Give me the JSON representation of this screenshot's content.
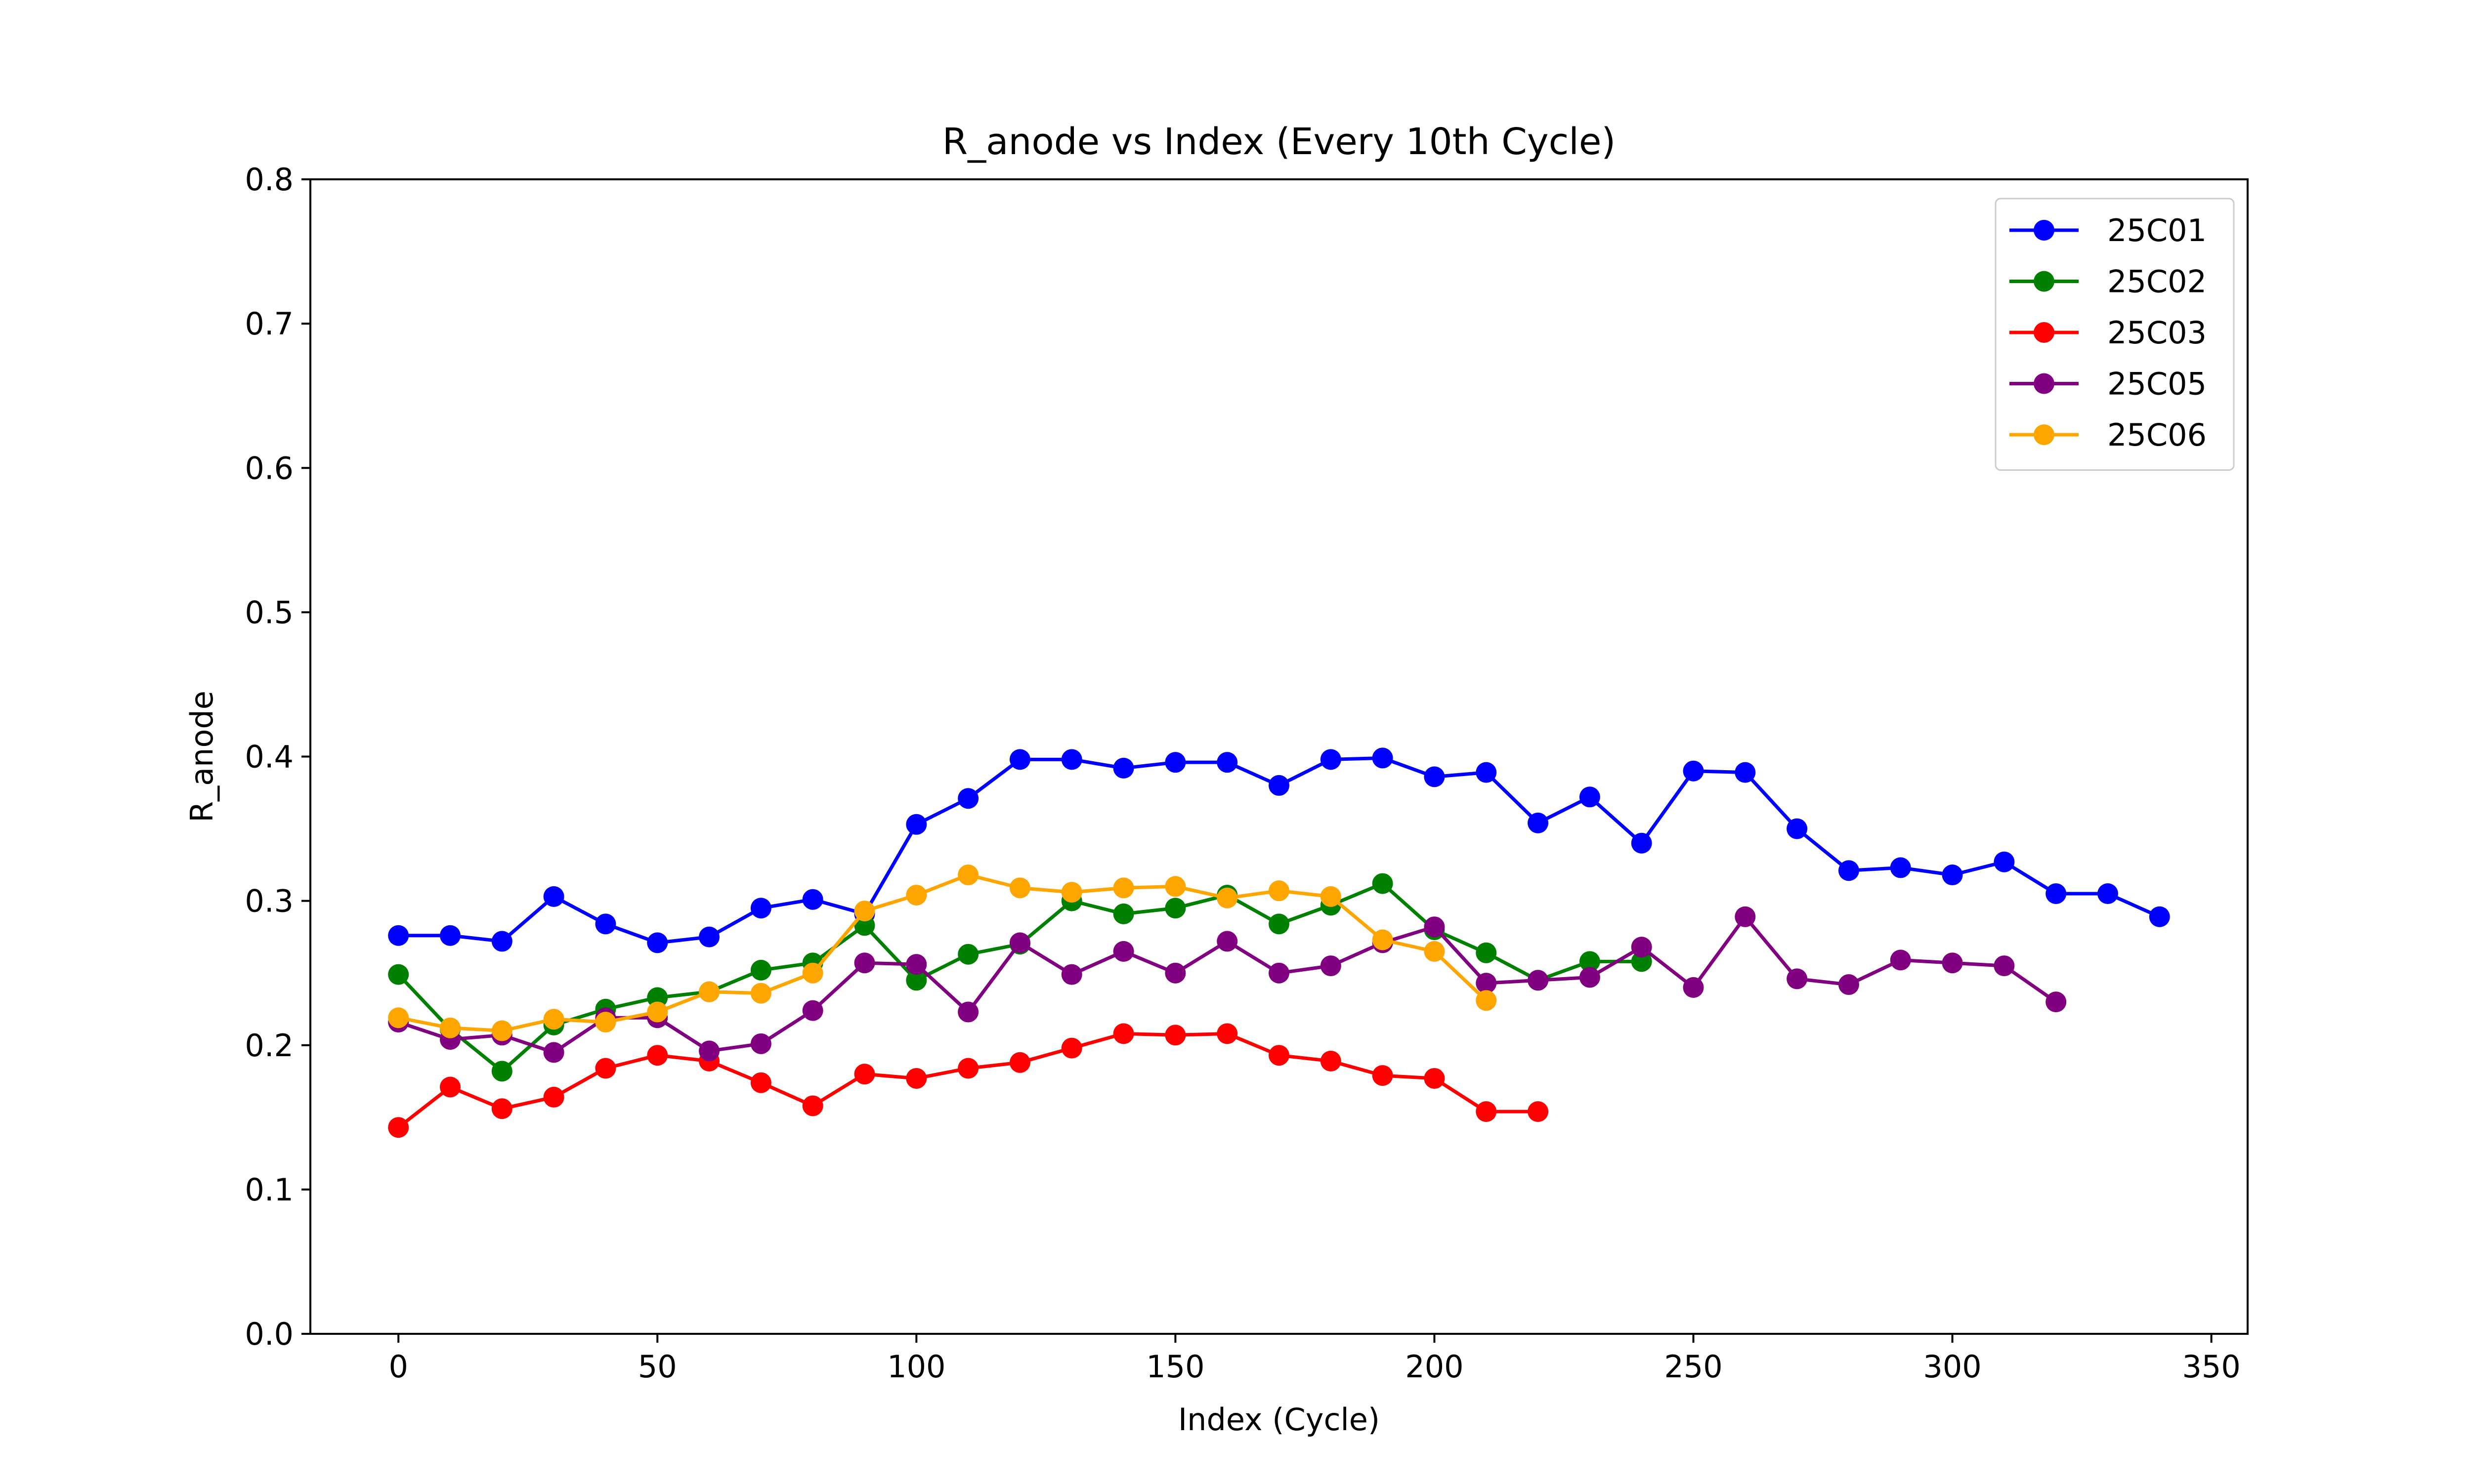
{
  "chart_data": {
    "type": "line",
    "title": "R_anode vs Index (Every 10th Cycle)",
    "xlabel": "Index (Cycle)",
    "ylabel": "R_anode",
    "xlim": [
      -17,
      357
    ],
    "ylim": [
      0.0,
      0.8
    ],
    "xticks": [
      0,
      50,
      100,
      150,
      200,
      250,
      300,
      350
    ],
    "xtick_labels": [
      "0",
      "50",
      "100",
      "150",
      "200",
      "250",
      "300",
      "350"
    ],
    "yticks": [
      0.0,
      0.1,
      0.2,
      0.3,
      0.4,
      0.5,
      0.6,
      0.7,
      0.8
    ],
    "ytick_labels": [
      "0.0",
      "0.1",
      "0.2",
      "0.3",
      "0.4",
      "0.5",
      "0.6",
      "0.7",
      "0.8"
    ],
    "grid": false,
    "legend_position": "top-right",
    "series": [
      {
        "name": "25C01",
        "color": "#0000ff",
        "x": [
          0,
          10,
          20,
          30,
          40,
          50,
          60,
          70,
          80,
          90,
          100,
          110,
          120,
          130,
          140,
          150,
          160,
          170,
          180,
          190,
          200,
          210,
          220,
          230,
          240,
          250,
          260,
          270,
          280,
          290,
          300,
          310,
          320,
          330,
          340
        ],
        "values": [
          0.276,
          0.276,
          0.272,
          0.303,
          0.284,
          0.271,
          0.275,
          0.295,
          0.301,
          0.291,
          0.353,
          0.371,
          0.398,
          0.398,
          0.392,
          0.396,
          0.396,
          0.38,
          0.398,
          0.399,
          0.386,
          0.389,
          0.354,
          0.372,
          0.34,
          0.39,
          0.389,
          0.35,
          0.321,
          0.323,
          0.318,
          0.327,
          0.305,
          0.305,
          0.289
        ]
      },
      {
        "name": "25C02",
        "color": "#008000",
        "x": [
          0,
          10,
          20,
          30,
          40,
          50,
          60,
          70,
          80,
          90,
          100,
          110,
          120,
          130,
          140,
          150,
          160,
          170,
          180,
          190,
          200,
          210,
          220,
          230,
          240
        ],
        "values": [
          0.249,
          0.211,
          0.182,
          0.214,
          0.225,
          0.233,
          0.237,
          0.252,
          0.257,
          0.283,
          0.245,
          0.263,
          0.27,
          0.3,
          0.291,
          0.295,
          0.304,
          0.284,
          0.297,
          0.312,
          0.28,
          0.264,
          0.245,
          0.258,
          0.258
        ]
      },
      {
        "name": "25C03",
        "color": "#ff0000",
        "x": [
          0,
          10,
          20,
          30,
          40,
          50,
          60,
          70,
          80,
          90,
          100,
          110,
          120,
          130,
          140,
          150,
          160,
          170,
          180,
          190,
          200,
          210,
          220
        ],
        "values": [
          0.143,
          0.171,
          0.156,
          0.164,
          0.184,
          0.193,
          0.189,
          0.174,
          0.158,
          0.18,
          0.177,
          0.184,
          0.188,
          0.198,
          0.208,
          0.207,
          0.208,
          0.193,
          0.189,
          0.179,
          0.177,
          0.154,
          0.154
        ]
      },
      {
        "name": "25C05",
        "color": "#800080",
        "x": [
          0,
          10,
          20,
          30,
          40,
          50,
          60,
          70,
          80,
          90,
          100,
          110,
          120,
          130,
          140,
          150,
          160,
          170,
          180,
          190,
          200,
          210,
          220,
          230,
          240,
          250,
          260,
          270,
          280,
          290,
          300,
          310,
          320
        ],
        "values": [
          0.216,
          0.204,
          0.207,
          0.195,
          0.219,
          0.219,
          0.196,
          0.201,
          0.224,
          0.257,
          0.256,
          0.223,
          0.271,
          0.249,
          0.265,
          0.25,
          0.272,
          0.25,
          0.255,
          0.271,
          0.282,
          0.243,
          0.245,
          0.247,
          0.268,
          0.24,
          0.289,
          0.246,
          0.242,
          0.259,
          0.257,
          0.255,
          0.23
        ]
      },
      {
        "name": "25C06",
        "color": "#ffa500",
        "x": [
          0,
          10,
          20,
          30,
          40,
          50,
          60,
          70,
          80,
          90,
          100,
          110,
          120,
          130,
          140,
          150,
          160,
          170,
          180,
          190,
          200,
          210
        ],
        "values": [
          0.219,
          0.212,
          0.21,
          0.218,
          0.216,
          0.223,
          0.237,
          0.236,
          0.25,
          0.293,
          0.304,
          0.318,
          0.309,
          0.306,
          0.309,
          0.31,
          0.302,
          0.307,
          0.303,
          0.273,
          0.265,
          0.231
        ]
      }
    ]
  }
}
